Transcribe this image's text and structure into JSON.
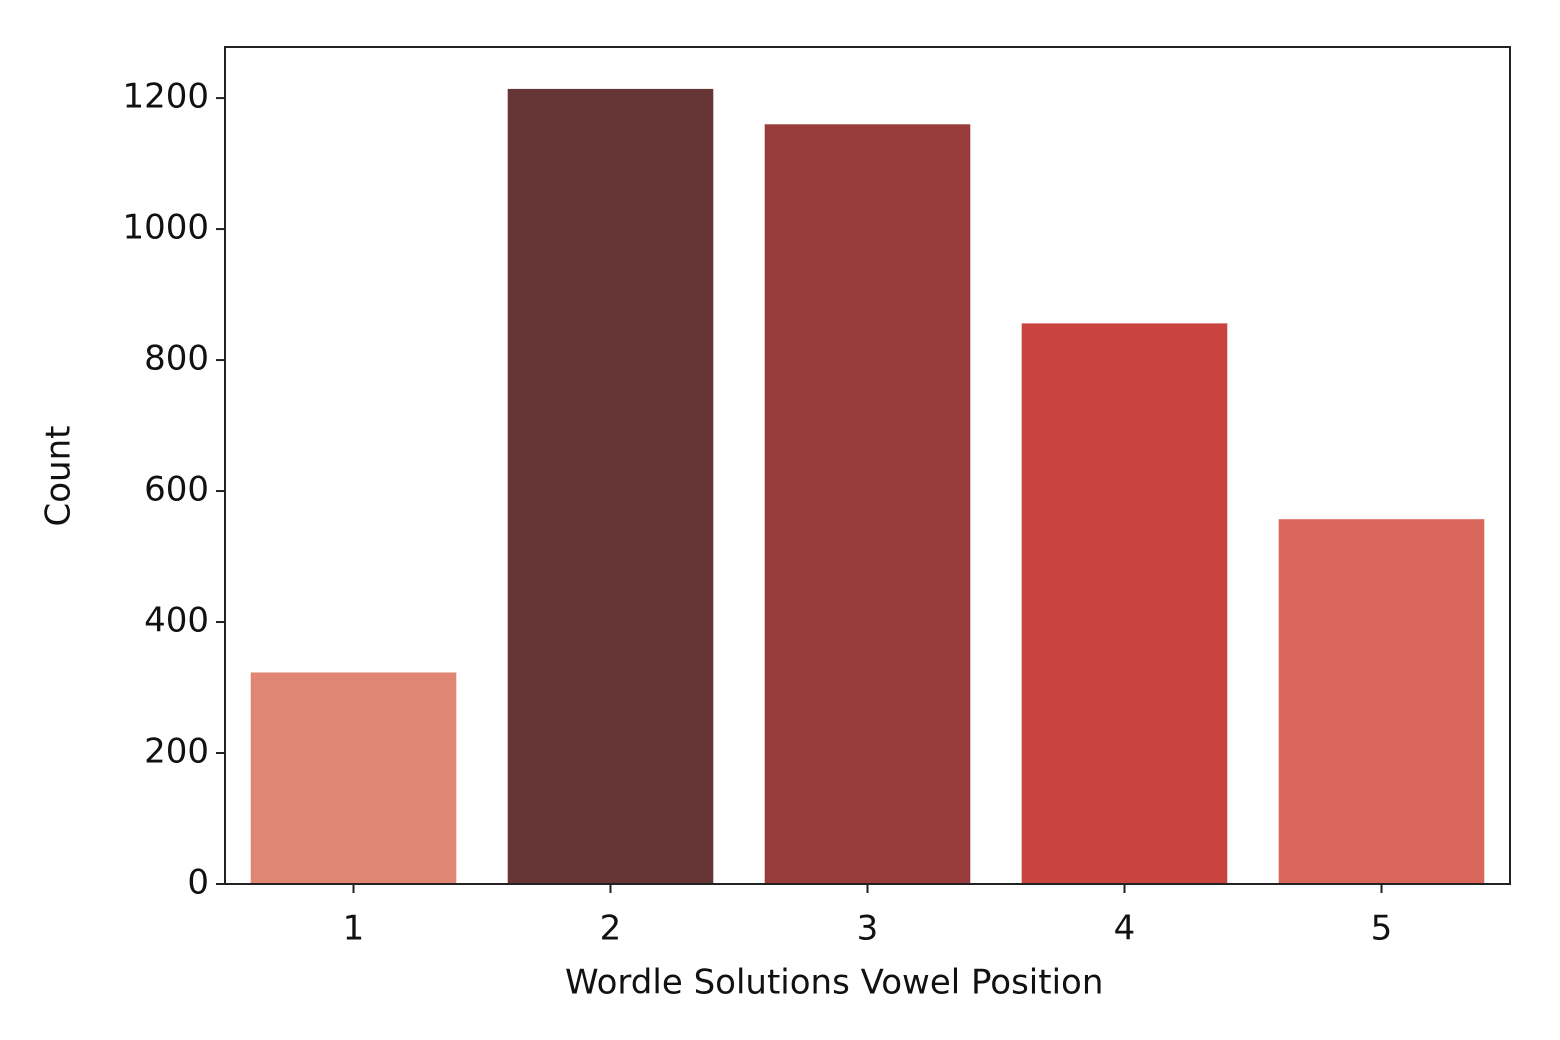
{
  "chart_data": {
    "type": "bar",
    "x_label": "Wordle Solutions Vowel Position",
    "y_label": "Count",
    "categories": [
      "1",
      "2",
      "3",
      "4",
      "5"
    ],
    "values": [
      323,
      1214,
      1160,
      856,
      557
    ],
    "colors": [
      "#e08675",
      "#663535",
      "#973c3a",
      "#c9443e",
      "#d9665b"
    ],
    "ylim": [
      0,
      1278
    ],
    "yticks": [
      0,
      200,
      400,
      600,
      800,
      1000,
      1200
    ]
  }
}
